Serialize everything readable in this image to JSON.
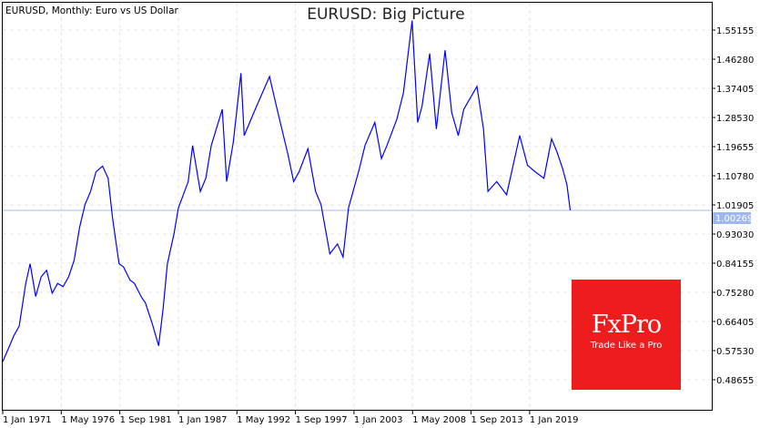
{
  "header": {
    "symbol_info": "EURUSD, Monthly:  Euro vs US Dollar"
  },
  "chart_data": {
    "type": "line",
    "title": "EURUSD: Big Picture",
    "xlabel": "",
    "ylabel": "",
    "grid": true,
    "line_color": "#0000ff",
    "x_tick_labels": [
      "1 Jan 1971",
      "1 May 1976",
      "1 Sep 1981",
      "1 Jan 1987",
      "1 May 1992",
      "1 Sep 1997",
      "1 Jan 2003",
      "1 May 2008",
      "1 Sep 2013",
      "1 Jan 2019"
    ],
    "y_tick_labels": [
      "1.55155",
      "1.46280",
      "1.37405",
      "1.28530",
      "1.19655",
      "1.10780",
      "1.01905",
      "0.93030",
      "0.84155",
      "0.75280",
      "0.66405",
      "0.57530",
      "0.48655"
    ],
    "current_price": {
      "value": "1.00269",
      "color": "#a0b8f0"
    },
    "series": [
      {
        "x": [
          1971.0,
          1971.5,
          1972.0,
          1972.5,
          1973.1,
          1973.5,
          1974.0,
          1974.5,
          1975.0,
          1975.5,
          1976.0,
          1976.5,
          1977.0,
          1977.5,
          1978.0,
          1978.5,
          1979.0,
          1979.5,
          1980.1,
          1980.6,
          1981.0,
          1981.6,
          1982.0,
          1982.6,
          1983.0,
          1983.6,
          1984.0,
          1984.6,
          1985.2,
          1985.6,
          1986.0,
          1986.6,
          1987.0,
          1987.9,
          1988.3,
          1989.0,
          1989.5,
          1990.0,
          1991.0,
          1991.4,
          1992.0,
          1992.7,
          1993.0,
          1994.0,
          1995.3,
          1996.0,
          1997.0,
          1997.5,
          1998.0,
          1998.8,
          1999.5,
          2000.0,
          2000.8,
          2001.5,
          2002.0,
          2002.5,
          2003.5,
          2004.0,
          2004.9,
          2005.5,
          2006.0,
          2006.9,
          2007.5,
          2008.3,
          2008.8,
          2009.2,
          2009.9,
          2010.5,
          2011.3,
          2011.9,
          2012.5,
          2013.0,
          2014.2,
          2014.8,
          2015.2,
          2016.0,
          2016.9,
          2018.1,
          2018.8,
          2019.5,
          2020.3,
          2021.0,
          2021.5,
          2022.0,
          2022.4,
          2022.7
        ],
        "y": [
          0.542,
          0.58,
          0.62,
          0.65,
          0.78,
          0.84,
          0.74,
          0.8,
          0.82,
          0.75,
          0.78,
          0.77,
          0.8,
          0.85,
          0.95,
          1.02,
          1.06,
          1.12,
          1.137,
          1.1,
          0.98,
          0.84,
          0.83,
          0.79,
          0.78,
          0.74,
          0.72,
          0.66,
          0.59,
          0.7,
          0.84,
          0.93,
          1.01,
          1.09,
          1.2,
          1.06,
          1.1,
          1.2,
          1.31,
          1.09,
          1.21,
          1.42,
          1.23,
          1.31,
          1.41,
          1.31,
          1.17,
          1.09,
          1.12,
          1.19,
          1.06,
          1.02,
          0.87,
          0.9,
          0.86,
          1.01,
          1.13,
          1.2,
          1.27,
          1.16,
          1.2,
          1.28,
          1.36,
          1.58,
          1.27,
          1.32,
          1.48,
          1.25,
          1.49,
          1.3,
          1.23,
          1.31,
          1.38,
          1.25,
          1.06,
          1.09,
          1.05,
          1.23,
          1.14,
          1.12,
          1.1,
          1.22,
          1.18,
          1.13,
          1.08,
          1.00269
        ]
      }
    ]
  },
  "logo": {
    "brand": "FxPro",
    "tagline": "Trade Like a Pro",
    "color": "#ee1c1c"
  }
}
